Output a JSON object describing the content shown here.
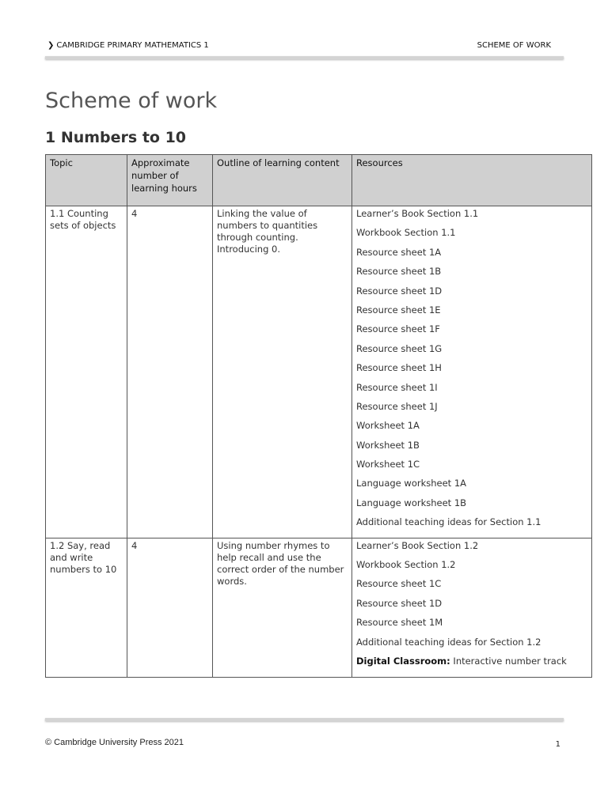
{
  "header": {
    "left": "CAMBRIDGE PRIMARY MATHEMATICS 1",
    "right": "SCHEME OF WORK"
  },
  "title": "Scheme of work",
  "unit": "1 Numbers to 10",
  "table": {
    "headers": [
      "Topic",
      "Approximate number of learning hours",
      "Outline of learning content",
      "Resources"
    ],
    "rows": [
      {
        "topic": "1.1 Counting sets of objects",
        "hours": "4",
        "outline": "Linking the value of numbers to quantities through counting. Introducing 0.",
        "resources": [
          "Learner’s Book Section 1.1",
          "Workbook Section 1.1",
          "Resource sheet 1A",
          "Resource sheet 1B",
          "Resource sheet 1D",
          "Resource sheet 1E",
          "Resource sheet 1F",
          "Resource sheet 1G",
          "Resource sheet 1H",
          "Resource sheet 1I",
          "Resource sheet 1J",
          "Worksheet 1A",
          "Worksheet 1B",
          "Worksheet 1C",
          "Language worksheet 1A",
          "Language worksheet 1B",
          "Additional teaching ideas for Section 1.1"
        ]
      },
      {
        "topic": "1.2 Say, read and write numbers to 10",
        "hours": "4",
        "outline": "Using number rhymes to help recall and use the correct order of the number words.",
        "resources": [
          "Learner’s Book Section 1.2",
          "Workbook Section 1.2",
          "Resource sheet 1C",
          "Resource sheet 1D",
          "Resource sheet 1M",
          "Additional teaching ideas for Section 1.2"
        ],
        "digital_label": "Digital Classroom:",
        "digital_text": " Interactive number track"
      }
    ]
  },
  "footer": {
    "copyright": "© Cambridge University Press 2021",
    "page": "1"
  }
}
